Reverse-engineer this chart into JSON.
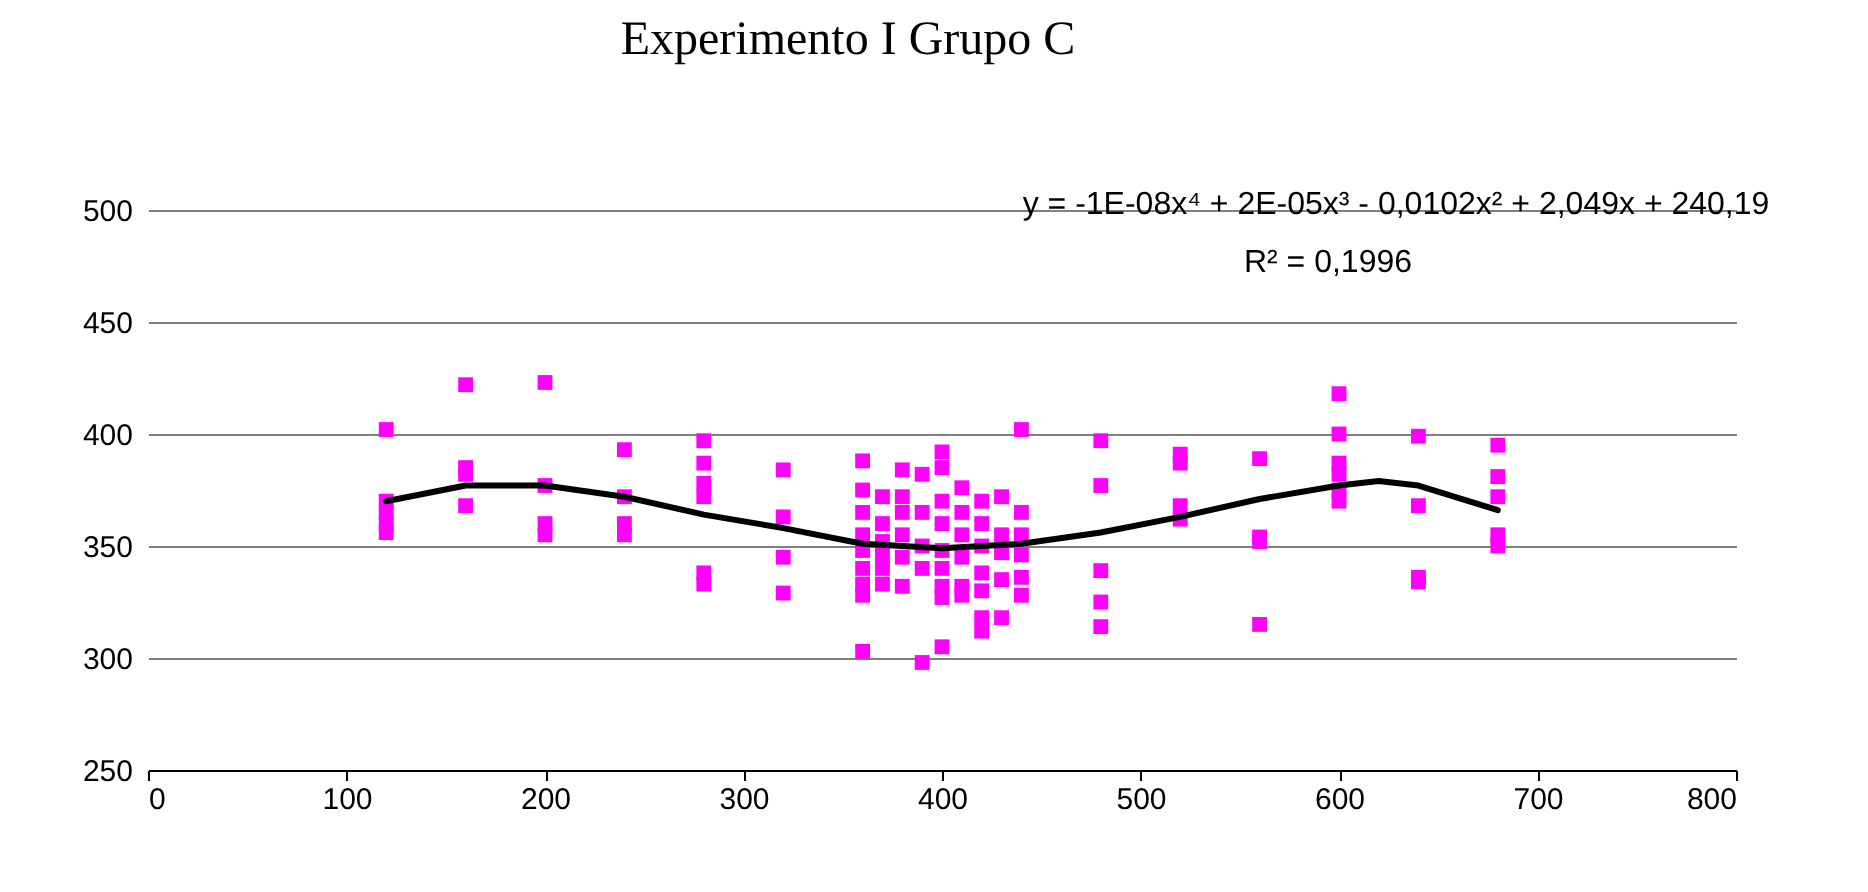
{
  "chart_data": {
    "type": "scatter",
    "title": "Experimento I Grupo C",
    "xlim": [
      0,
      800
    ],
    "xticks": [
      0,
      100,
      200,
      300,
      400,
      500,
      600,
      700,
      800
    ],
    "ylim": [
      250,
      500
    ],
    "yticks": [
      250,
      300,
      350,
      400,
      450,
      500
    ],
    "grid": "y",
    "marker": "square",
    "annotations": [
      "y = -1E-08x⁴ + 2E-05x³ - 0,0102x² + 2,049x + 240,19",
      "R² = 0,1996"
    ],
    "series": [
      {
        "color": "#ff00ff",
        "x": [
          120,
          120,
          120,
          120,
          120,
          160,
          160,
          160,
          160,
          200,
          200,
          200,
          200,
          240,
          240,
          240,
          240,
          280,
          280,
          280,
          280,
          280,
          280,
          320,
          320,
          320,
          320,
          360,
          360,
          360,
          360,
          360,
          360,
          360,
          360,
          360,
          370,
          370,
          370,
          370,
          370,
          370,
          380,
          380,
          380,
          380,
          380,
          380,
          390,
          390,
          390,
          390,
          390,
          400,
          400,
          400,
          400,
          400,
          400,
          400,
          400,
          400,
          410,
          410,
          410,
          410,
          410,
          410,
          420,
          420,
          420,
          420,
          420,
          420,
          420,
          430,
          430,
          430,
          430,
          430,
          440,
          440,
          440,
          440,
          440,
          440,
          480,
          480,
          480,
          480,
          480,
          520,
          520,
          520,
          520,
          560,
          560,
          560,
          560,
          600,
          600,
          600,
          600,
          600,
          600,
          640,
          640,
          640,
          640,
          680,
          680,
          680,
          680,
          680
        ],
        "values": [
          402,
          370,
          365,
          360,
          356,
          422,
          385,
          382,
          368,
          423,
          377,
          360,
          355,
          393,
          372,
          360,
          355,
          397,
          387,
          378,
          372,
          338,
          333,
          384,
          363,
          345,
          329,
          388,
          375,
          365,
          355,
          348,
          340,
          333,
          328,
          303,
          372,
          360,
          352,
          346,
          340,
          333,
          384,
          372,
          365,
          355,
          345,
          332,
          382,
          365,
          350,
          340,
          298,
          392,
          385,
          370,
          360,
          348,
          340,
          332,
          327,
          305,
          376,
          365,
          355,
          345,
          332,
          328,
          370,
          360,
          350,
          338,
          330,
          318,
          312,
          372,
          355,
          347,
          335,
          318,
          402,
          365,
          355,
          346,
          336,
          328,
          397,
          377,
          339,
          325,
          314,
          391,
          387,
          368,
          362,
          389,
          354,
          352,
          315,
          418,
          400,
          387,
          382,
          375,
          370,
          399,
          368,
          336,
          334,
          395,
          381,
          372,
          355,
          350
        ]
      },
      {
        "type": "line",
        "color": "#000000",
        "line_style": "solid",
        "marker": "none",
        "x": [
          120,
          160,
          200,
          240,
          280,
          320,
          360,
          400,
          440,
          480,
          520,
          560,
          600,
          620,
          640,
          680
        ],
        "values": [
          370,
          377,
          377,
          372,
          364,
          358,
          351,
          349,
          351,
          356,
          363,
          371,
          377,
          379,
          377,
          366
        ]
      }
    ]
  }
}
